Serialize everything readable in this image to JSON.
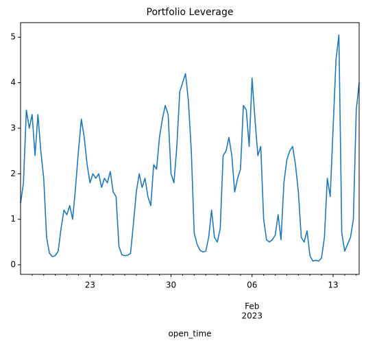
{
  "chart_data": {
    "type": "line",
    "title": "Portfolio Leverage",
    "x_label": "open_time",
    "x": [
      "2023-01-17T00:00",
      "2023-01-17T06:00",
      "2023-01-17T12:00",
      "2023-01-17T18:00",
      "2023-01-18T00:00",
      "2023-01-18T06:00",
      "2023-01-18T12:00",
      "2023-01-18T18:00",
      "2023-01-19T00:00",
      "2023-01-19T06:00",
      "2023-01-19T12:00",
      "2023-01-19T18:00",
      "2023-01-20T00:00",
      "2023-01-20T06:00",
      "2023-01-20T12:00",
      "2023-01-20T18:00",
      "2023-01-21T00:00",
      "2023-01-21T06:00",
      "2023-01-21T12:00",
      "2023-01-21T18:00",
      "2023-01-22T00:00",
      "2023-01-22T06:00",
      "2023-01-22T12:00",
      "2023-01-22T18:00",
      "2023-01-23T00:00",
      "2023-01-23T06:00",
      "2023-01-23T12:00",
      "2023-01-23T18:00",
      "2023-01-24T00:00",
      "2023-01-24T06:00",
      "2023-01-24T12:00",
      "2023-01-24T18:00",
      "2023-01-25T00:00",
      "2023-01-25T06:00",
      "2023-01-25T12:00",
      "2023-01-25T18:00",
      "2023-01-26T00:00",
      "2023-01-26T06:00",
      "2023-01-26T12:00",
      "2023-01-26T18:00",
      "2023-01-27T00:00",
      "2023-01-27T06:00",
      "2023-01-27T12:00",
      "2023-01-27T18:00",
      "2023-01-28T00:00",
      "2023-01-28T06:00",
      "2023-01-28T12:00",
      "2023-01-28T18:00",
      "2023-01-29T00:00",
      "2023-01-29T06:00",
      "2023-01-29T12:00",
      "2023-01-29T18:00",
      "2023-01-30T00:00",
      "2023-01-30T06:00",
      "2023-01-30T12:00",
      "2023-01-30T18:00",
      "2023-01-31T00:00",
      "2023-01-31T06:00",
      "2023-01-31T12:00",
      "2023-01-31T18:00",
      "2023-02-01T00:00",
      "2023-02-01T06:00",
      "2023-02-01T12:00",
      "2023-02-01T18:00",
      "2023-02-02T00:00",
      "2023-02-02T06:00",
      "2023-02-02T12:00",
      "2023-02-02T18:00",
      "2023-02-03T00:00",
      "2023-02-03T06:00",
      "2023-02-03T12:00",
      "2023-02-03T18:00",
      "2023-02-04T00:00",
      "2023-02-04T06:00",
      "2023-02-04T12:00",
      "2023-02-04T18:00",
      "2023-02-05T00:00",
      "2023-02-05T06:00",
      "2023-02-05T12:00",
      "2023-02-05T18:00",
      "2023-02-06T00:00",
      "2023-02-06T06:00",
      "2023-02-06T12:00",
      "2023-02-06T18:00",
      "2023-02-07T00:00",
      "2023-02-07T06:00",
      "2023-02-07T12:00",
      "2023-02-07T18:00",
      "2023-02-08T00:00",
      "2023-02-08T06:00",
      "2023-02-08T12:00",
      "2023-02-08T18:00",
      "2023-02-09T00:00",
      "2023-02-09T06:00",
      "2023-02-09T12:00",
      "2023-02-09T18:00",
      "2023-02-10T00:00",
      "2023-02-10T06:00",
      "2023-02-10T12:00",
      "2023-02-10T18:00",
      "2023-02-11T00:00",
      "2023-02-11T06:00",
      "2023-02-11T12:00",
      "2023-02-11T18:00",
      "2023-02-12T00:00",
      "2023-02-12T06:00",
      "2023-02-12T12:00",
      "2023-02-12T18:00",
      "2023-02-13T00:00",
      "2023-02-13T06:00",
      "2023-02-13T12:00",
      "2023-02-13T18:00",
      "2023-02-14T00:00",
      "2023-02-14T06:00",
      "2023-02-14T12:00",
      "2023-02-14T18:00",
      "2023-02-15T00:00",
      "2023-02-15T06:00"
    ],
    "series": [
      {
        "color": "#1f77b4",
        "values": [
          1.35,
          1.8,
          3.4,
          3.0,
          3.3,
          2.4,
          3.3,
          2.5,
          1.9,
          0.6,
          0.25,
          0.18,
          0.2,
          0.3,
          0.8,
          1.2,
          1.1,
          1.3,
          1.0,
          1.7,
          2.5,
          3.2,
          2.8,
          2.2,
          1.8,
          2.0,
          1.9,
          2.0,
          1.7,
          1.9,
          1.8,
          2.05,
          1.6,
          1.5,
          0.4,
          0.22,
          0.2,
          0.21,
          0.25,
          0.9,
          1.6,
          2.0,
          1.7,
          1.9,
          1.5,
          1.3,
          2.2,
          2.1,
          2.8,
          3.2,
          3.5,
          3.3,
          2.0,
          1.8,
          2.6,
          3.8,
          4.0,
          4.2,
          3.6,
          2.5,
          0.7,
          0.45,
          0.32,
          0.28,
          0.3,
          0.6,
          1.2,
          0.6,
          0.5,
          0.8,
          2.4,
          2.5,
          2.8,
          2.4,
          1.6,
          1.9,
          2.1,
          3.5,
          3.4,
          2.6,
          4.1,
          3.2,
          2.4,
          2.6,
          1.0,
          0.55,
          0.5,
          0.55,
          0.65,
          1.1,
          0.55,
          1.8,
          2.3,
          2.5,
          2.6,
          2.2,
          1.6,
          0.6,
          0.5,
          0.75,
          0.2,
          0.08,
          0.1,
          0.08,
          0.15,
          0.6,
          1.9,
          1.5,
          3.0,
          4.5,
          5.05,
          0.7,
          0.3,
          0.45,
          0.6,
          1.0,
          3.4,
          4.0
        ]
      }
    ],
    "xlim": [
      "2023-01-17T00:00",
      "2023-02-15T06:00"
    ],
    "xticks": [
      {
        "value": "2023-01-23T00:00",
        "label": "23"
      },
      {
        "value": "2023-01-30T00:00",
        "label": "30"
      },
      {
        "value": "2023-02-06T00:00",
        "label": "06",
        "sublabel": [
          "Feb",
          "2023"
        ]
      },
      {
        "value": "2023-02-13T00:00",
        "label": "13"
      }
    ],
    "xminorticks": [
      "2023-01-18T00:00",
      "2023-01-19T00:00",
      "2023-01-20T00:00",
      "2023-01-21T00:00",
      "2023-01-22T00:00",
      "2023-01-24T00:00",
      "2023-01-25T00:00",
      "2023-01-26T00:00",
      "2023-01-27T00:00",
      "2023-01-28T00:00",
      "2023-01-29T00:00",
      "2023-01-31T00:00",
      "2023-02-01T00:00",
      "2023-02-02T00:00",
      "2023-02-03T00:00",
      "2023-02-04T00:00",
      "2023-02-05T00:00",
      "2023-02-07T00:00",
      "2023-02-08T00:00",
      "2023-02-09T00:00",
      "2023-02-10T00:00",
      "2023-02-11T00:00",
      "2023-02-12T00:00",
      "2023-02-14T00:00",
      "2023-02-15T00:00"
    ],
    "ylim": [
      -0.21,
      5.32
    ],
    "yticks": [
      0,
      1,
      2,
      3,
      4,
      5
    ]
  }
}
